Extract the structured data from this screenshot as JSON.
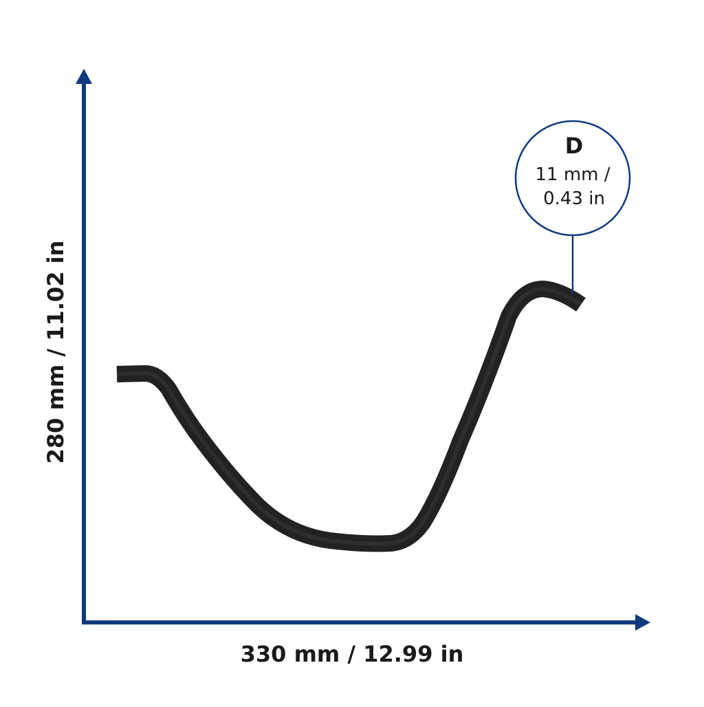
{
  "dimensions": {
    "height": "280 mm / 11.02 in",
    "width": "330 mm / 12.99 in"
  },
  "callout": {
    "letter": "D",
    "line1": "11 mm /",
    "line2": "0.43 in"
  }
}
